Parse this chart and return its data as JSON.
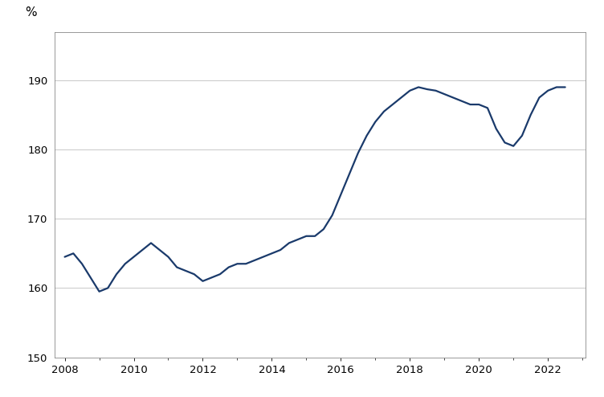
{
  "title": "",
  "ylabel": "%",
  "line_color": "#1a3a6b",
  "line_width": 1.6,
  "background_color": "#ffffff",
  "grid_color": "#c8c8c8",
  "xlim": [
    2007.7,
    2023.1
  ],
  "ylim": [
    150,
    197
  ],
  "yticks": [
    150,
    160,
    170,
    180,
    190
  ],
  "xticks": [
    2008,
    2010,
    2012,
    2014,
    2016,
    2018,
    2020,
    2022
  ],
  "data": {
    "x": [
      2008.0,
      2008.25,
      2008.5,
      2008.75,
      2009.0,
      2009.25,
      2009.5,
      2009.75,
      2010.0,
      2010.25,
      2010.5,
      2010.75,
      2011.0,
      2011.25,
      2011.5,
      2011.75,
      2012.0,
      2012.25,
      2012.5,
      2012.75,
      2013.0,
      2013.25,
      2013.5,
      2013.75,
      2014.0,
      2014.25,
      2014.5,
      2014.75,
      2015.0,
      2015.25,
      2015.5,
      2015.75,
      2016.0,
      2016.25,
      2016.5,
      2016.75,
      2017.0,
      2017.25,
      2017.5,
      2017.75,
      2018.0,
      2018.25,
      2018.5,
      2018.75,
      2019.0,
      2019.25,
      2019.5,
      2019.75,
      2020.0,
      2020.25,
      2020.5,
      2020.75,
      2021.0,
      2021.25,
      2021.5,
      2021.75,
      2022.0,
      2022.25,
      2022.5
    ],
    "y": [
      164.5,
      165.0,
      163.5,
      161.5,
      159.5,
      160.0,
      162.0,
      163.5,
      164.5,
      165.5,
      166.5,
      165.5,
      164.5,
      163.0,
      162.5,
      162.0,
      161.0,
      161.5,
      162.0,
      163.0,
      163.5,
      163.5,
      164.0,
      164.5,
      165.0,
      165.5,
      166.5,
      167.0,
      167.5,
      167.5,
      168.5,
      170.5,
      173.5,
      176.5,
      179.5,
      182.0,
      184.0,
      185.5,
      186.5,
      187.5,
      188.5,
      189.0,
      188.7,
      188.5,
      188.0,
      187.5,
      187.0,
      186.5,
      186.5,
      186.0,
      183.0,
      181.0,
      180.5,
      182.0,
      185.0,
      187.5,
      188.5,
      189.0,
      189.0
    ]
  }
}
